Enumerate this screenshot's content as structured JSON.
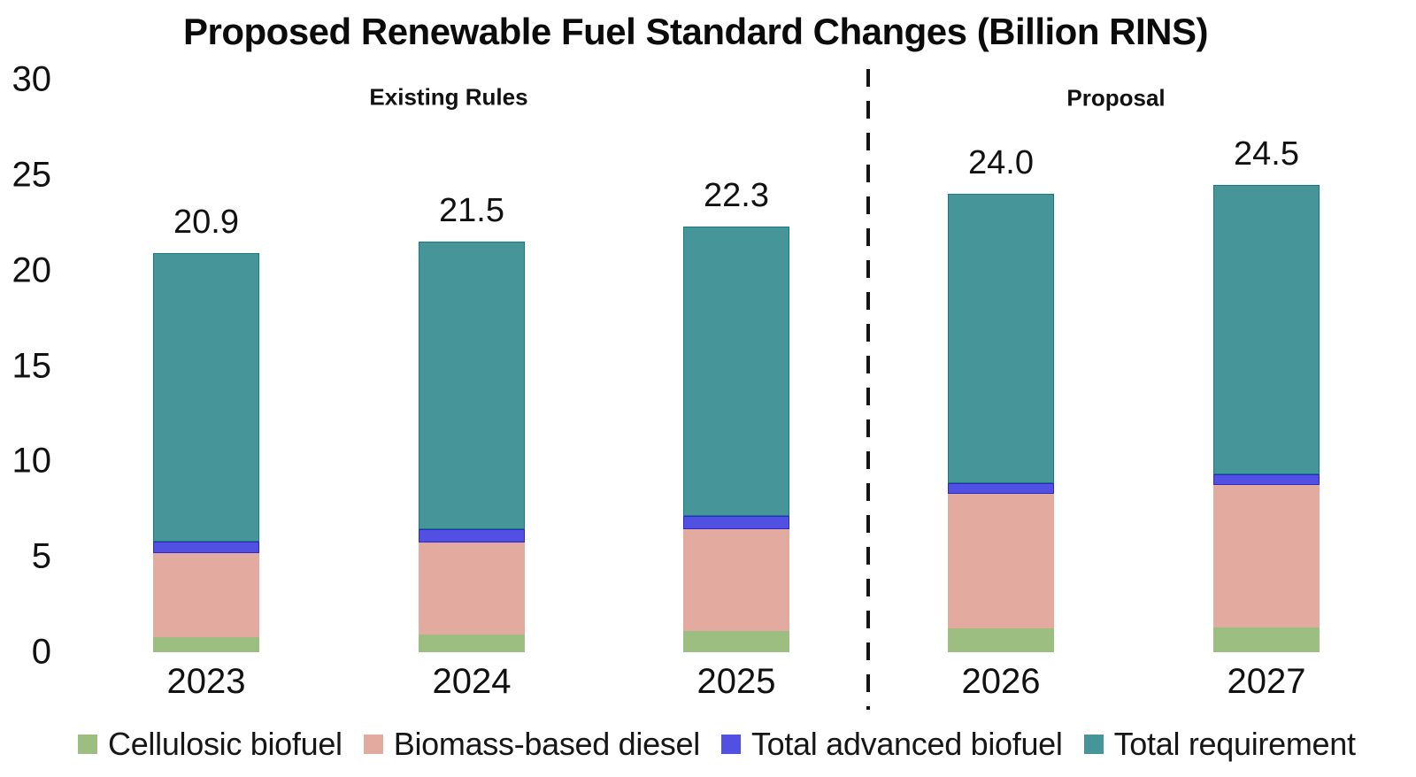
{
  "title": "Proposed Renewable Fuel Standard Changes (Billion RINS)",
  "sections": {
    "left": "Existing Rules",
    "right": "Proposal"
  },
  "chart_data": {
    "type": "bar",
    "stacked": true,
    "title": "Proposed Renewable Fuel Standard Changes (Billion RINS)",
    "categories": [
      "2023",
      "2024",
      "2025",
      "2026",
      "2027"
    ],
    "series": [
      {
        "name": "Cellulosic biofuel",
        "color": "#9dbe81",
        "border_color": "#9dbe81",
        "values": [
          0.8,
          0.95,
          1.1,
          1.25,
          1.3
        ]
      },
      {
        "name": "Biomass-based diesel",
        "color": "#e3aba0",
        "border_color": "#e3aba0",
        "values": [
          4.4,
          4.8,
          5.35,
          7.05,
          7.45
        ]
      },
      {
        "name": "Total advanced biofuel",
        "color": "#5250e3",
        "border_color": "#2d2ac5",
        "values": [
          0.6,
          0.7,
          0.7,
          0.55,
          0.55
        ]
      },
      {
        "name": "Total requirement",
        "color": "#459599",
        "border_color": "#157a81",
        "values": [
          15.1,
          15.05,
          15.15,
          15.15,
          15.2
        ]
      }
    ],
    "totals": [
      20.9,
      21.5,
      22.3,
      24.0,
      24.5
    ],
    "total_labels": [
      "20.9",
      "21.5",
      "22.3",
      "24.0",
      "24.5"
    ],
    "ylim": [
      0,
      30
    ],
    "yticks": [
      0,
      5,
      10,
      15,
      20,
      25,
      30
    ],
    "grid": false,
    "axis_lines": false,
    "legend_position": "bottom",
    "divider_between": [
      "2025",
      "2026"
    ]
  }
}
